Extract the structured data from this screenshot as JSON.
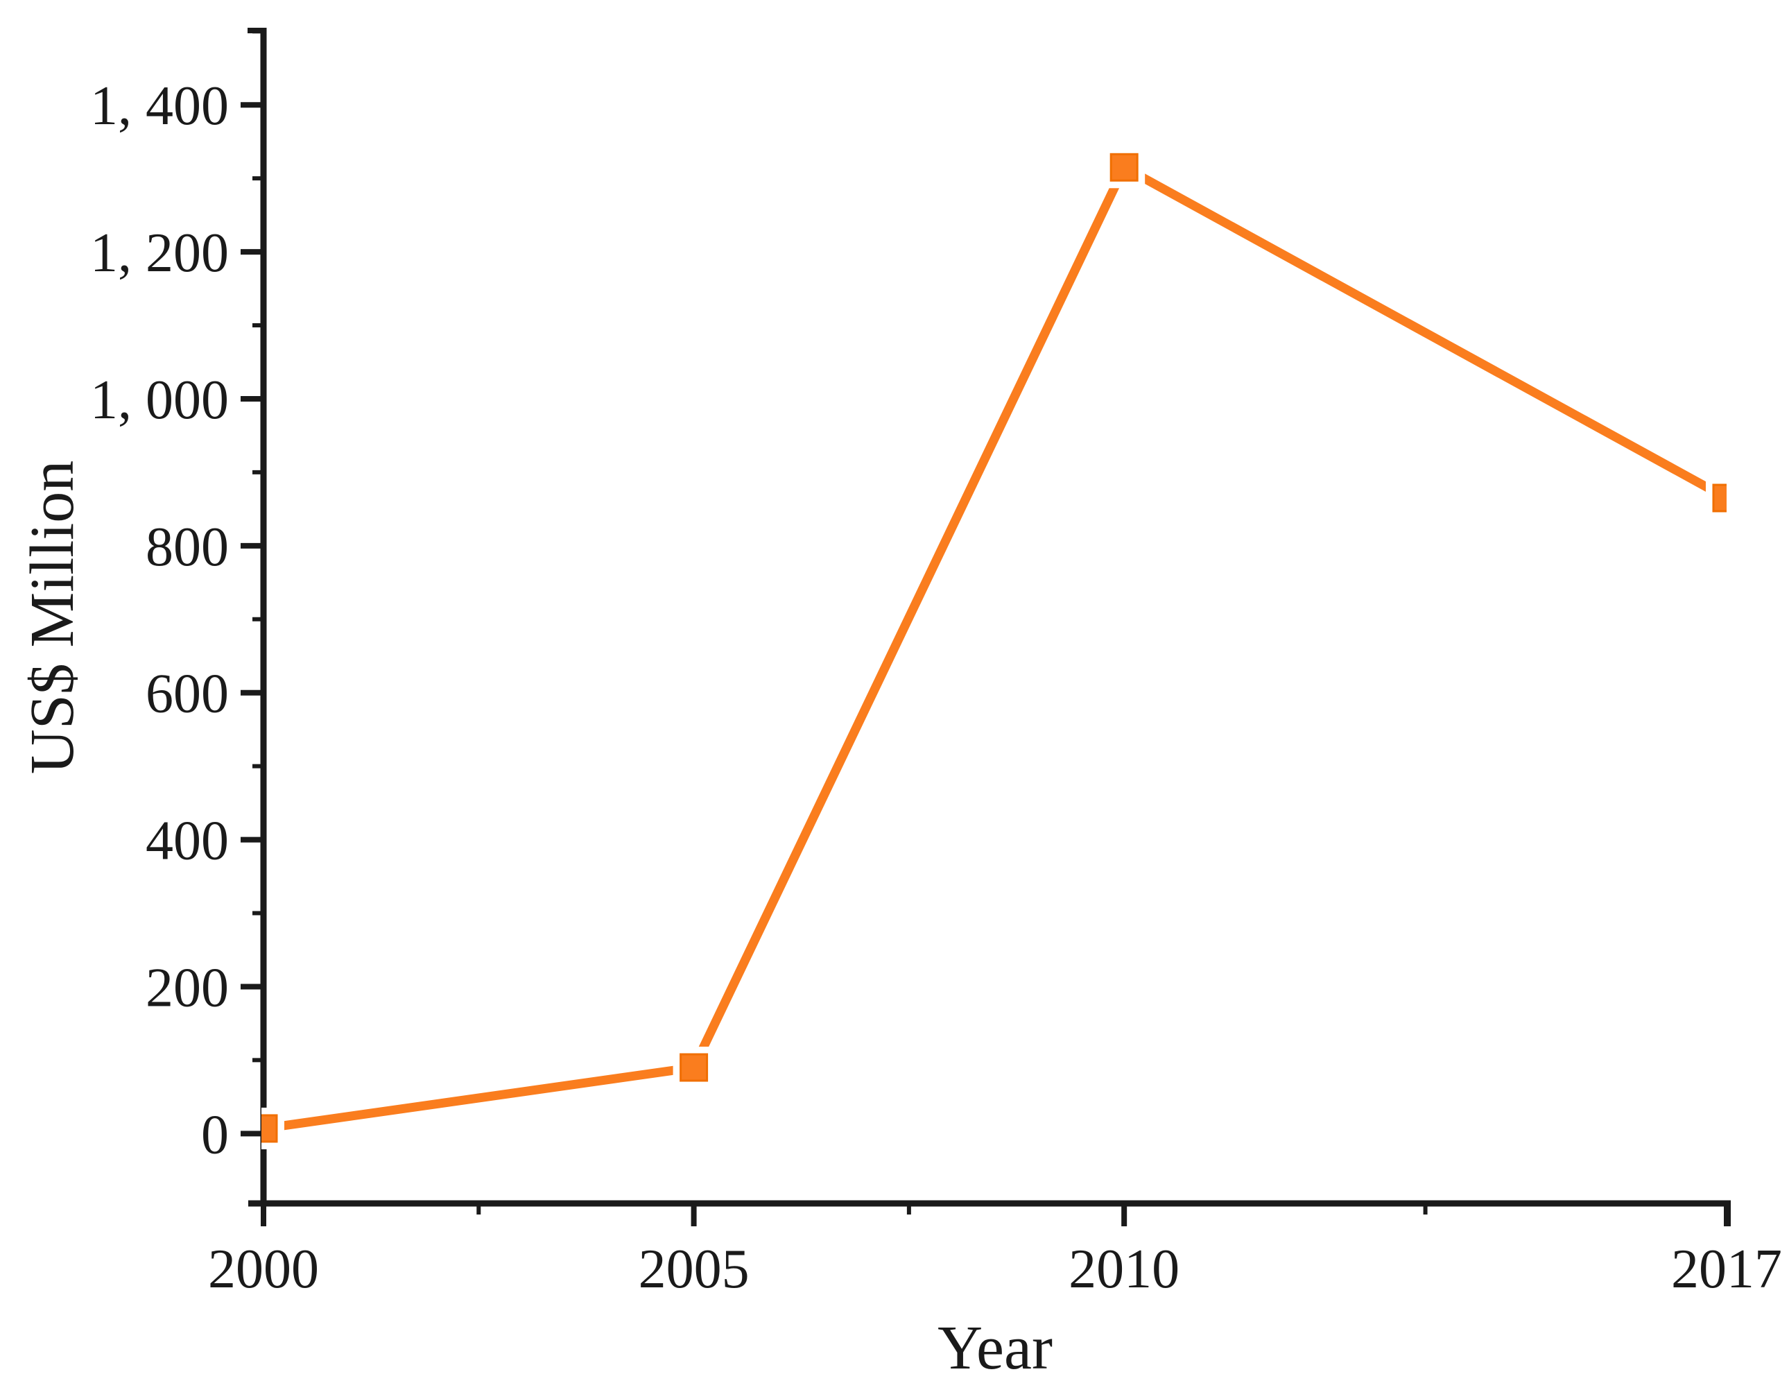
{
  "chart_data": {
    "type": "line",
    "title": "",
    "xlabel": "Year",
    "ylabel": "US$ Million",
    "x": [
      2000,
      2005,
      2010,
      2017
    ],
    "series": [
      {
        "name": "US$ Million",
        "values": [
          7,
          90,
          1315,
          865
        ]
      }
    ],
    "xlim": [
      2000,
      2017
    ],
    "ylim": [
      -95,
      1505
    ],
    "x_ticks": {
      "major_values": [
        2000,
        2005,
        2010,
        2017
      ],
      "major_labels": [
        "2000",
        "2005",
        "2010",
        "2017"
      ],
      "minor_values": [
        2002.5,
        2007.5,
        2013.5
      ]
    },
    "y_ticks": {
      "major_values": [
        0,
        200,
        400,
        600,
        800,
        1000,
        1200,
        1400
      ],
      "major_labels": [
        "0",
        "200",
        "400",
        "600",
        "800",
        "1, 000",
        "1, 200",
        "1, 400"
      ],
      "minor_values": [
        100,
        300,
        500,
        700,
        900,
        1100,
        1300,
        1500
      ]
    },
    "grid": false,
    "legend": "none",
    "marker": "square",
    "colors": {
      "line": "#FA7D1E",
      "marker_fill": "#FA7D1E",
      "marker_edge": "#F06F02",
      "axis": "#1a1a1a",
      "background": "#ffffff"
    }
  }
}
